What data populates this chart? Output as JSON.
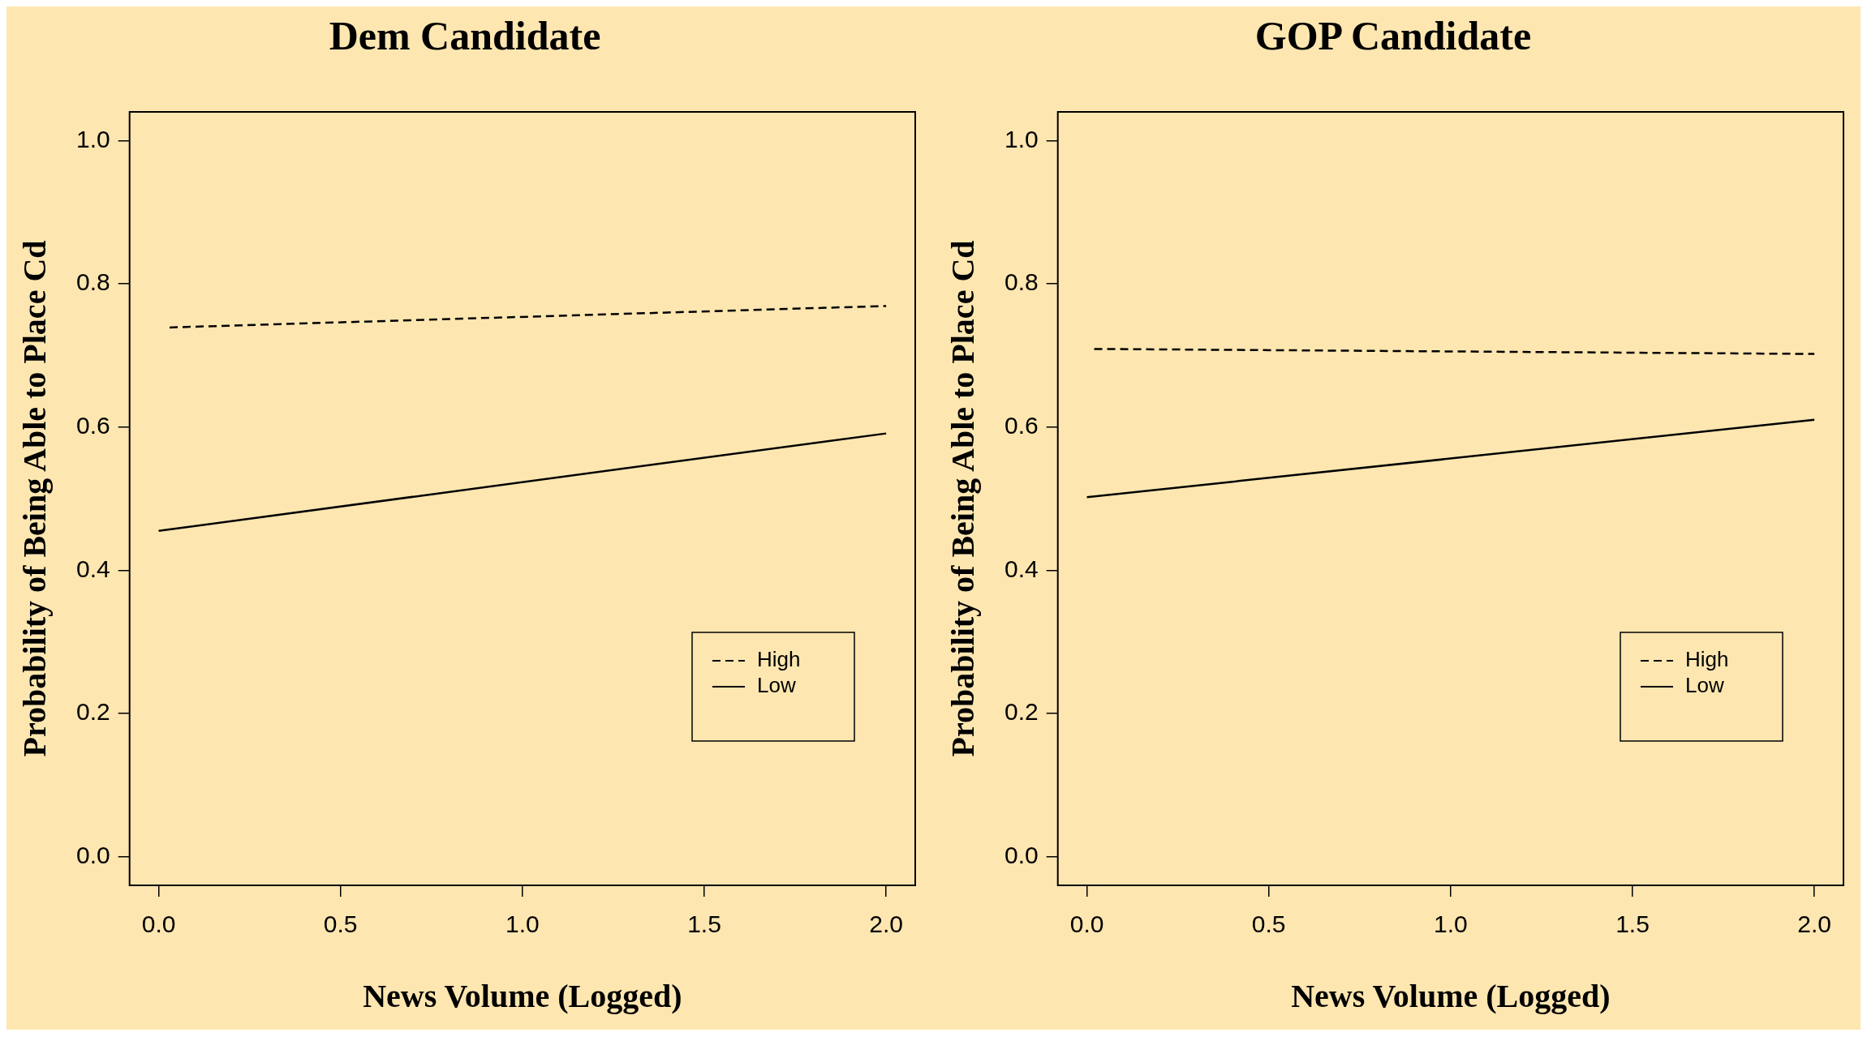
{
  "chart_data": [
    {
      "type": "line",
      "title": "Dem Candidate",
      "xlabel": "News Volume (Logged)",
      "ylabel": "Probability of Being Able to Place Cd",
      "series": [
        {
          "name": "High",
          "color": "#000000",
          "line_style": "dashed",
          "x": [
            0.03,
            2.0
          ],
          "values": [
            0.739,
            0.769
          ]
        },
        {
          "name": "Low",
          "color": "#000000",
          "line_style": "solid",
          "x": [
            0.0,
            2.0
          ],
          "values": [
            0.455,
            0.591
          ]
        }
      ],
      "xlim": [
        -0.08,
        2.08
      ],
      "ylim": [
        -0.04,
        1.04
      ],
      "xticks": [
        {
          "value": 0,
          "label": "0.0"
        },
        {
          "value": 0.5,
          "label": "0.5"
        },
        {
          "value": 1,
          "label": "1.0"
        },
        {
          "value": 1.5,
          "label": "1.5"
        },
        {
          "value": 2,
          "label": "2.0"
        }
      ],
      "yticks": [
        {
          "value": 0,
          "label": "0.0"
        },
        {
          "value": 0.2,
          "label": "0.2"
        },
        {
          "value": 0.4,
          "label": "0.4"
        },
        {
          "value": 0.6,
          "label": "0.6"
        },
        {
          "value": 0.8,
          "label": "0.8"
        },
        {
          "value": 1,
          "label": "1.0"
        }
      ],
      "grid": false,
      "legend": "bottom right",
      "marker": "none"
    },
    {
      "type": "line",
      "title": "GOP Candidate",
      "xlabel": "News Volume (Logged)",
      "ylabel": "Probability of Being Able to Place Cd",
      "series": [
        {
          "name": "High",
          "color": "#000000",
          "line_style": "dashed",
          "x": [
            0.02,
            2.0
          ],
          "values": [
            0.709,
            0.702
          ]
        },
        {
          "name": "Low",
          "color": "#000000",
          "line_style": "solid",
          "x": [
            0.0,
            2.0
          ],
          "values": [
            0.502,
            0.61
          ]
        }
      ],
      "xlim": [
        -0.08,
        2.08
      ],
      "ylim": [
        -0.04,
        1.04
      ],
      "xticks": [
        {
          "value": 0,
          "label": "0.0"
        },
        {
          "value": 0.5,
          "label": "0.5"
        },
        {
          "value": 1,
          "label": "1.0"
        },
        {
          "value": 1.5,
          "label": "1.5"
        },
        {
          "value": 2,
          "label": "2.0"
        }
      ],
      "yticks": [
        {
          "value": 0,
          "label": "0.0"
        },
        {
          "value": 0.2,
          "label": "0.2"
        },
        {
          "value": 0.4,
          "label": "0.4"
        },
        {
          "value": 0.6,
          "label": "0.6"
        },
        {
          "value": 0.8,
          "label": "0.8"
        },
        {
          "value": 1,
          "label": "1.0"
        }
      ],
      "grid": false,
      "legend": "bottom right",
      "marker": "none"
    }
  ]
}
